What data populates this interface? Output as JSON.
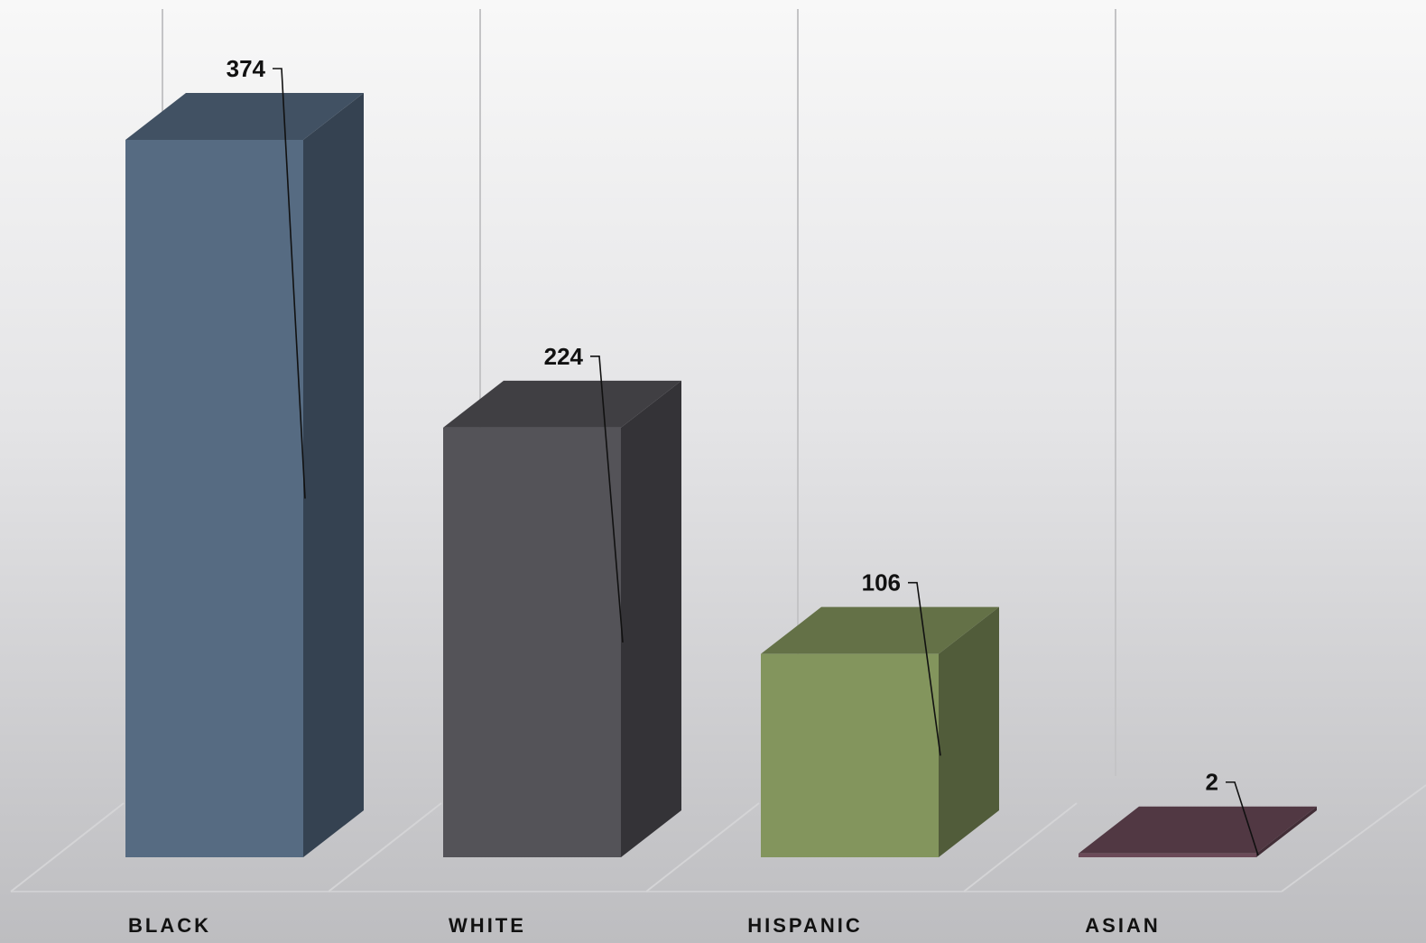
{
  "chart_data": {
    "type": "bar",
    "style": "3d-column",
    "categories": [
      "BLACK",
      "WHITE",
      "HISPANIC",
      "ASIAN"
    ],
    "values": [
      374,
      224,
      106,
      2
    ],
    "colors": [
      "#566b82",
      "#545358",
      "#83955d",
      "#6b4a58"
    ],
    "ylim": [
      0,
      374
    ],
    "title": "",
    "xlabel": "",
    "ylabel": "",
    "legend": "none",
    "grid": false
  }
}
